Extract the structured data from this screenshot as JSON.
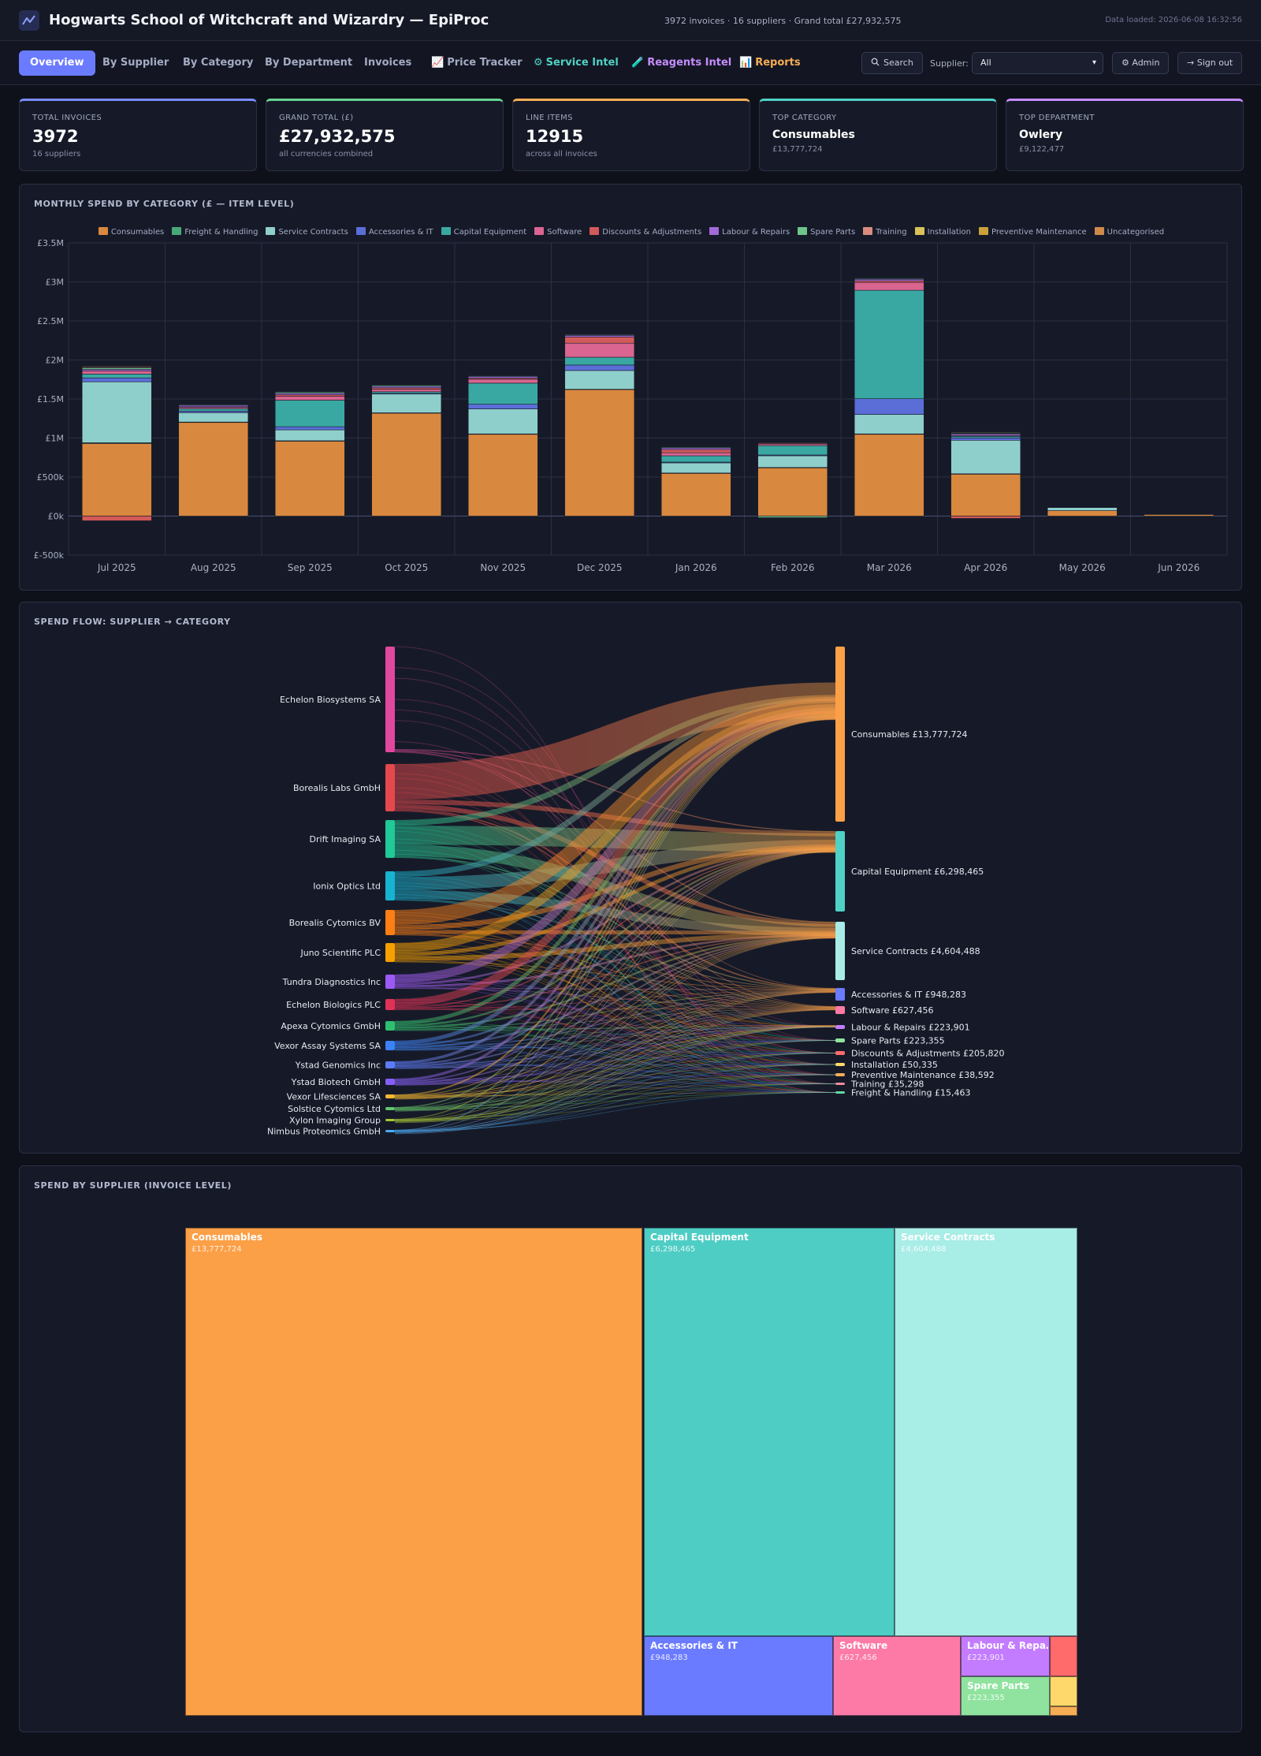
{
  "header": {
    "title": "Hogwarts School of Witchcraft and Wizardry — EpiProc",
    "stats": "3972 invoices · 16 suppliers · Grand total £27,932,575",
    "data_loaded": "Data loaded: 2026-06-08 16:32:56"
  },
  "nav": {
    "tabs": [
      {
        "label": "Overview",
        "icon": "",
        "color": "",
        "active": true
      },
      {
        "label": "By Supplier",
        "icon": "",
        "color": ""
      },
      {
        "label": "By Category",
        "icon": "",
        "color": ""
      },
      {
        "label": "By Department",
        "icon": "",
        "color": ""
      },
      {
        "label": "Invoices",
        "icon": "",
        "color": ""
      },
      {
        "label": "Price Tracker",
        "icon": "📈",
        "color": ""
      },
      {
        "label": "Service Intel",
        "icon": "⚙",
        "color": "#4fd1c5"
      },
      {
        "label": "Reagents Intel",
        "icon": "🧪",
        "color": "#c58cff"
      },
      {
        "label": "Reports",
        "icon": "📊",
        "color": "#f6ad55"
      }
    ],
    "search_label": "Search",
    "supplier_label": "Supplier:",
    "supplier_value": "All",
    "admin_label": "⚙ Admin",
    "signout_label": "→ Sign out"
  },
  "kpis": [
    {
      "label": "TOTAL INVOICES",
      "value": "3972",
      "sub": "16 suppliers",
      "color": "#7c8cff",
      "small": false
    },
    {
      "label": "GRAND TOTAL (£)",
      "value": "£27,932,575",
      "sub": "all currencies combined",
      "color": "#68d391",
      "small": false
    },
    {
      "label": "LINE ITEMS",
      "value": "12915",
      "sub": "across all invoices",
      "color": "#f6ad55",
      "small": false
    },
    {
      "label": "TOP CATEGORY",
      "value": "Consumables",
      "sub": "£13,777,724",
      "color": "#4fd1c5",
      "small": true
    },
    {
      "label": "TOP DEPARTMENT",
      "value": "Owlery",
      "sub": "£9,122,477",
      "color": "#c58cff",
      "small": true
    }
  ],
  "monthly_panel": {
    "title": "MONTHLY SPEND BY CATEGORY (£ — ITEM LEVEL)"
  },
  "chart_data": {
    "type": "bar",
    "stacked": true,
    "categories": [
      "Jul 2025",
      "Aug 2025",
      "Sep 2025",
      "Oct 2025",
      "Nov 2025",
      "Dec 2025",
      "Jan 2026",
      "Feb 2026",
      "Mar 2026",
      "Apr 2026",
      "May 2026",
      "Jun 2026"
    ],
    "ylim": [
      -500000,
      3500000
    ],
    "yticks": [
      -500000,
      0,
      500000,
      1000000,
      1500000,
      2000000,
      2500000,
      3000000,
      3500000
    ],
    "ytick_labels": [
      "£-500k",
      "£0k",
      "£500k",
      "£1M",
      "£1.5M",
      "£2M",
      "£2.5M",
      "£3M",
      "£3.5M"
    ],
    "grid": true,
    "legend_position": "top",
    "series": [
      {
        "name": "Consumables",
        "color": "#d9883f",
        "values": [
          930000,
          1200000,
          960000,
          1320000,
          1050000,
          1620000,
          550000,
          620000,
          1050000,
          540000,
          70000,
          20000
        ]
      },
      {
        "name": "Freight & Handling",
        "color": "#48a878",
        "values": [
          10000,
          5000,
          5000,
          3000,
          3000,
          5000,
          2000,
          3000,
          3000,
          2000,
          0,
          0
        ]
      },
      {
        "name": "Service Contracts",
        "color": "#8fcfcb",
        "values": [
          780000,
          120000,
          140000,
          240000,
          320000,
          240000,
          130000,
          150000,
          250000,
          430000,
          40000,
          0
        ]
      },
      {
        "name": "Accessories & IT",
        "color": "#5b6ed8",
        "values": [
          50000,
          20000,
          40000,
          10000,
          60000,
          70000,
          10000,
          10000,
          200000,
          30000,
          5000,
          0
        ]
      },
      {
        "name": "Capital Equipment",
        "color": "#3aa8a2",
        "values": [
          50000,
          30000,
          340000,
          20000,
          270000,
          100000,
          80000,
          120000,
          1390000,
          20000,
          0,
          0
        ]
      },
      {
        "name": "Software",
        "color": "#d96590",
        "values": [
          40000,
          20000,
          50000,
          30000,
          50000,
          180000,
          40000,
          20000,
          100000,
          10000,
          0,
          0
        ]
      },
      {
        "name": "Discounts & Adjustments",
        "color": "#d35a5a",
        "values": [
          -60000,
          5000,
          20000,
          20000,
          15000,
          80000,
          40000,
          10000,
          20000,
          -30000,
          0,
          0
        ]
      },
      {
        "name": "Labour & Repairs",
        "color": "#a26ad8",
        "values": [
          20000,
          20000,
          20000,
          20000,
          20000,
          20000,
          20000,
          10000,
          20000,
          20000,
          0,
          0
        ]
      },
      {
        "name": "Spare Parts",
        "color": "#6fc48a",
        "values": [
          20000,
          10000,
          15000,
          15000,
          10000,
          10000,
          10000,
          -20000,
          10000,
          10000,
          0,
          0
        ]
      },
      {
        "name": "Training",
        "color": "#d98b7e",
        "values": [
          10000,
          5000,
          5000,
          5000,
          5000,
          5000,
          5000,
          2000,
          5000,
          5000,
          0,
          0
        ]
      },
      {
        "name": "Installation",
        "color": "#d9c25a",
        "values": [
          10000,
          5000,
          5000,
          5000,
          5000,
          5000,
          5000,
          5000,
          5000,
          10000,
          0,
          0
        ]
      },
      {
        "name": "Preventive Maintenance",
        "color": "#c9a23a",
        "values": [
          5000,
          3000,
          3000,
          3000,
          3000,
          3000,
          3000,
          3000,
          3000,
          5000,
          0,
          0
        ]
      },
      {
        "name": "Uncategorised",
        "color": "#cf8a4a",
        "values": [
          0,
          0,
          0,
          0,
          0,
          0,
          0,
          0,
          0,
          0,
          0,
          0
        ]
      }
    ]
  },
  "sankey_panel": {
    "title": "SPEND FLOW: SUPPLIER → CATEGORY",
    "suppliers": [
      {
        "name": "Echelon Biosystems SA",
        "color": "#e0479e"
      },
      {
        "name": "Borealis Labs GmbH",
        "color": "#e5484d"
      },
      {
        "name": "Drift Imaging SA",
        "color": "#20c997"
      },
      {
        "name": "Ionix Optics Ltd",
        "color": "#17b3d1"
      },
      {
        "name": "Borealis Cytomics BV",
        "color": "#fd7e14"
      },
      {
        "name": "Juno Scientific PLC",
        "color": "#f59f00"
      },
      {
        "name": "Tundra Diagnostics Inc",
        "color": "#9b59f6"
      },
      {
        "name": "Echelon Biologics PLC",
        "color": "#e03158"
      },
      {
        "name": "Apexa Cytomics GmbH",
        "color": "#2fbf71"
      },
      {
        "name": "Vexor Assay Systems SA",
        "color": "#3b82f6"
      },
      {
        "name": "Ystad Genomics Inc",
        "color": "#5c7cfa"
      },
      {
        "name": "Ystad Biotech GmbH",
        "color": "#845ef7"
      },
      {
        "name": "Vexor Lifesciences SA",
        "color": "#f7b731"
      },
      {
        "name": "Solstice Cytomics Ltd",
        "color": "#63c46b"
      },
      {
        "name": "Xylon Imaging Group",
        "color": "#a4c639"
      },
      {
        "name": "Nimbus Proteomics GmbH",
        "color": "#4dabf7"
      }
    ],
    "categories": [
      {
        "name": "Consumables £13,777,724",
        "color": "#fca048"
      },
      {
        "name": "Capital Equipment £6,298,465",
        "color": "#4fd1c5"
      },
      {
        "name": "Service Contracts £4,604,488",
        "color": "#a8ece6"
      },
      {
        "name": "Accessories & IT £948,283",
        "color": "#6b7bff"
      },
      {
        "name": "Software £627,456",
        "color": "#fd7aa6"
      },
      {
        "name": "Labour & Repairs £223,901",
        "color": "#c37cff"
      },
      {
        "name": "Spare Parts £223,355",
        "color": "#8fe39e"
      },
      {
        "name": "Discounts & Adjustments £205,820",
        "color": "#ff6b6b"
      },
      {
        "name": "Installation £50,335",
        "color": "#ffd86b"
      },
      {
        "name": "Preventive Maintenance £38,592",
        "color": "#f6ad55"
      },
      {
        "name": "Training £35,298",
        "color": "#f08ca0"
      },
      {
        "name": "Freight & Handling £15,463",
        "color": "#63d8a6"
      }
    ]
  },
  "treemap_panel": {
    "title": "SPEND BY SUPPLIER (INVOICE LEVEL)",
    "tiles": [
      {
        "name": "Consumables",
        "value": "£13,777,724",
        "color": "#fca048"
      },
      {
        "name": "Capital Equipment",
        "value": "£6,298,465",
        "color": "#4ecdc4"
      },
      {
        "name": "Service Contracts",
        "value": "£4,604,488",
        "color": "#a9ede7"
      },
      {
        "name": "Accessories & IT",
        "value": "£948,283",
        "color": "#6b7bff"
      },
      {
        "name": "Software",
        "value": "£627,456",
        "color": "#fd7aa6"
      },
      {
        "name": "Labour & Repa…",
        "value": "£223,901",
        "color": "#c37cff"
      },
      {
        "name": "Spare Parts",
        "value": "£223,355",
        "color": "#8fe39e"
      },
      {
        "name": "",
        "value": "",
        "color": "#ff6b6b"
      },
      {
        "name": "",
        "value": "",
        "color": "#ffd86b"
      },
      {
        "name": "",
        "value": "",
        "color": "#f6ad55"
      }
    ]
  }
}
